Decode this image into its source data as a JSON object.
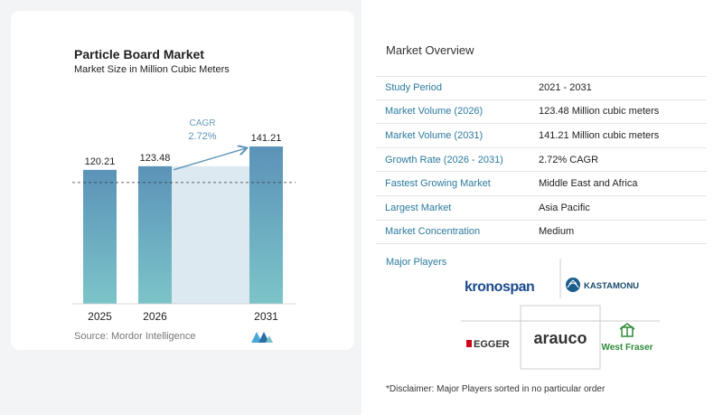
{
  "chart": {
    "title": "Particle Board Market",
    "subtitle": "Market Size in Million Cubic Meters",
    "source": "Source:  Mordor Intelligence",
    "cagr_label": "CAGR",
    "cagr_value": "2.72%"
  },
  "chart_data": {
    "type": "bar",
    "categories": [
      "2025",
      "2026",
      "2031"
    ],
    "values": [
      120.21,
      123.48,
      141.21
    ],
    "value_labels": [
      "120.21",
      "123.48",
      "141.21"
    ],
    "title": "Particle Board Market",
    "subtitle": "Market Size in Million Cubic Meters",
    "xlabel": "",
    "ylabel": "",
    "ylim": [
      0,
      141.21
    ],
    "grid": false,
    "colors": {
      "bar_top": "#5b93b8",
      "bar_bottom": "#7cc4c9",
      "gap_band": "#dde9f1",
      "arrow": "#5b93b8",
      "dashed": "#333333"
    }
  },
  "overview": {
    "title": "Market Overview",
    "rows": [
      {
        "label": "Study Period",
        "value": "2021 - 2031"
      },
      {
        "label": "Market Volume (2026)",
        "value": "123.48 Million cubic meters"
      },
      {
        "label": "Market Volume (2031)",
        "value": "141.21 Million cubic meters"
      },
      {
        "label": "Growth Rate (2026 - 2031)",
        "value": "2.72% CAGR"
      },
      {
        "label": "Fastest Growing Market",
        "value": "Middle East and Africa"
      },
      {
        "label": "Largest Market",
        "value": "Asia Pacific"
      },
      {
        "label": "Market Concentration",
        "value": "Medium"
      }
    ]
  },
  "players": {
    "title": "Major Players",
    "logos": [
      "kronospan",
      "KASTAMONU",
      "EGGER",
      "arauco",
      "West Fraser"
    ]
  },
  "disclaimer": "*Disclaimer: Major Players sorted in no particular order",
  "icons": {
    "source_logo": "mordor-intelligence-logo-icon"
  }
}
